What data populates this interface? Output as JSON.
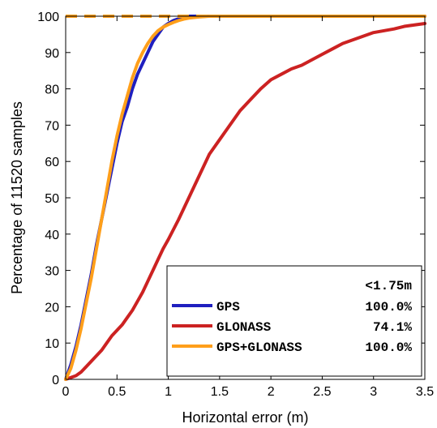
{
  "chart_data": {
    "type": "line",
    "xlabel": "Horizontal error (m)",
    "ylabel": "Percentage of 11520 samples",
    "xlim": [
      0,
      3.5
    ],
    "ylim": [
      0,
      100
    ],
    "xticks": [
      0,
      0.5,
      1,
      1.5,
      2,
      2.5,
      3,
      3.5
    ],
    "xtick_labels": [
      "0",
      "0.5",
      "1",
      "1.5",
      "2",
      "2.5",
      "3",
      "3.5"
    ],
    "yticks": [
      0,
      10,
      20,
      30,
      40,
      50,
      60,
      70,
      80,
      90,
      100
    ],
    "ytick_labels": [
      "0",
      "10",
      "20",
      "30",
      "40",
      "50",
      "60",
      "70",
      "80",
      "90",
      "100"
    ],
    "grid": false,
    "legend_position": "bottom-right",
    "legend_header": "<1.75m",
    "series": [
      {
        "name": "GPS",
        "color": "#1f1fbf",
        "legend_value": "100.0%",
        "x": [
          0,
          0.05,
          0.1,
          0.15,
          0.2,
          0.25,
          0.3,
          0.35,
          0.4,
          0.45,
          0.5,
          0.55,
          0.6,
          0.65,
          0.7,
          0.75,
          0.8,
          0.85,
          0.9,
          0.95,
          1.0,
          1.05,
          1.1,
          1.15,
          1.2,
          1.3,
          1.4,
          1.5,
          1.75,
          2.5,
          3.5
        ],
        "y": [
          0,
          4,
          9,
          15,
          22,
          29,
          37,
          44,
          51,
          58,
          65,
          71,
          75,
          80,
          84,
          87,
          90,
          93,
          95,
          97,
          98,
          98.8,
          99.3,
          99.7,
          100,
          100,
          100,
          100,
          100,
          100,
          100
        ]
      },
      {
        "name": "GLONASS",
        "color": "#cc2222",
        "legend_value": "74.1%",
        "x": [
          0,
          0.05,
          0.1,
          0.15,
          0.2,
          0.25,
          0.3,
          0.35,
          0.4,
          0.45,
          0.5,
          0.55,
          0.6,
          0.65,
          0.7,
          0.75,
          0.8,
          0.85,
          0.9,
          0.95,
          1.0,
          1.1,
          1.2,
          1.3,
          1.4,
          1.5,
          1.6,
          1.7,
          1.8,
          1.9,
          2.0,
          2.1,
          2.2,
          2.3,
          2.4,
          2.5,
          2.6,
          2.7,
          2.8,
          2.9,
          3.0,
          3.1,
          3.2,
          3.3,
          3.4,
          3.5
        ],
        "y": [
          0,
          0.5,
          1,
          2,
          3.5,
          5,
          6.5,
          8,
          10,
          12,
          13.5,
          15,
          17,
          19,
          21.5,
          24,
          27,
          30,
          33,
          36,
          38.5,
          44,
          50,
          56,
          62,
          66,
          70,
          74,
          77,
          80,
          82.5,
          84,
          85.5,
          86.5,
          88,
          89.5,
          91,
          92.5,
          93.5,
          94.5,
          95.5,
          96,
          96.5,
          97.2,
          97.6,
          98
        ]
      },
      {
        "name": "GPS+GLONASS",
        "color": "#ff9f1a",
        "legend_value": "100.0%",
        "x": [
          0,
          0.05,
          0.1,
          0.15,
          0.2,
          0.25,
          0.3,
          0.35,
          0.4,
          0.45,
          0.5,
          0.55,
          0.6,
          0.65,
          0.7,
          0.75,
          0.8,
          0.85,
          0.9,
          0.95,
          1.0,
          1.05,
          1.1,
          1.15,
          1.2,
          1.3,
          1.4,
          1.5,
          1.75,
          2.5,
          3.5
        ],
        "y": [
          0,
          3,
          8,
          14,
          21,
          28,
          36,
          44,
          52,
          60,
          67,
          73,
          78,
          83,
          87,
          90,
          92.5,
          94.5,
          96,
          97,
          97.7,
          98.3,
          98.8,
          99.2,
          99.5,
          99.8,
          100,
          100,
          100,
          100,
          100
        ]
      }
    ]
  }
}
